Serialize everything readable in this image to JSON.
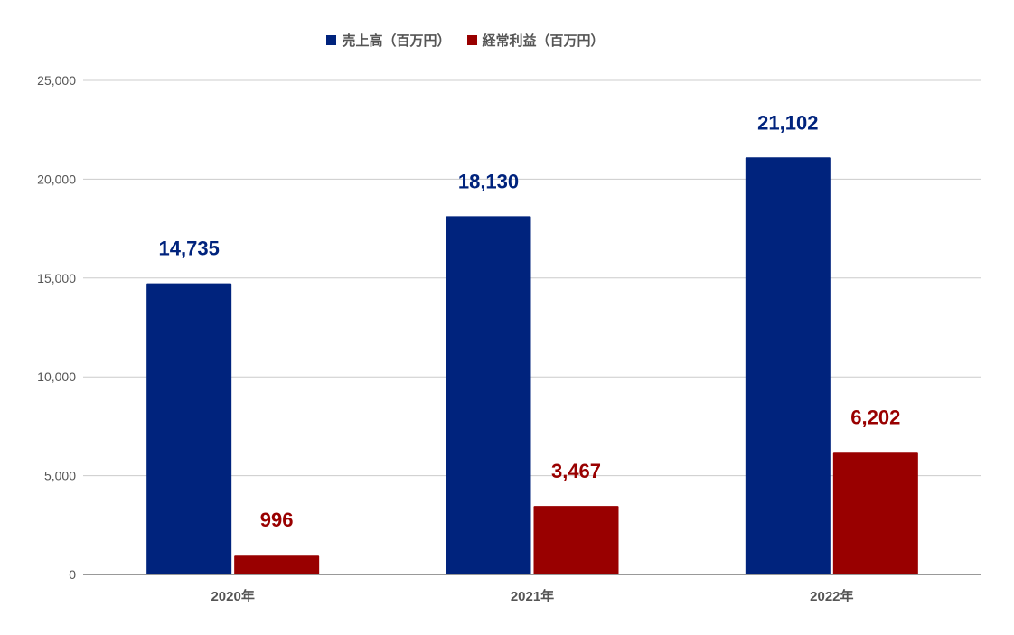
{
  "chart_data": {
    "type": "bar",
    "categories": [
      "2020年",
      "2021年",
      "2022年"
    ],
    "series": [
      {
        "name": "売上高（百万円）",
        "values": [
          14735,
          18130,
          21102
        ],
        "labels": [
          "14,735",
          "18,130",
          "21,102"
        ],
        "color": "#00237d"
      },
      {
        "name": "経常利益（百万円）",
        "values": [
          996,
          3467,
          6202
        ],
        "labels": [
          "996",
          "3,467",
          "6,202"
        ],
        "color": "#990000"
      }
    ],
    "ylim": [
      0,
      25000
    ],
    "yticks": [
      0,
      5000,
      10000,
      15000,
      20000,
      25000
    ],
    "ytick_labels": [
      "0",
      "5,000",
      "10,000",
      "15,000",
      "20,000",
      "25,000"
    ],
    "grid": true,
    "legend_position": "top-center"
  }
}
